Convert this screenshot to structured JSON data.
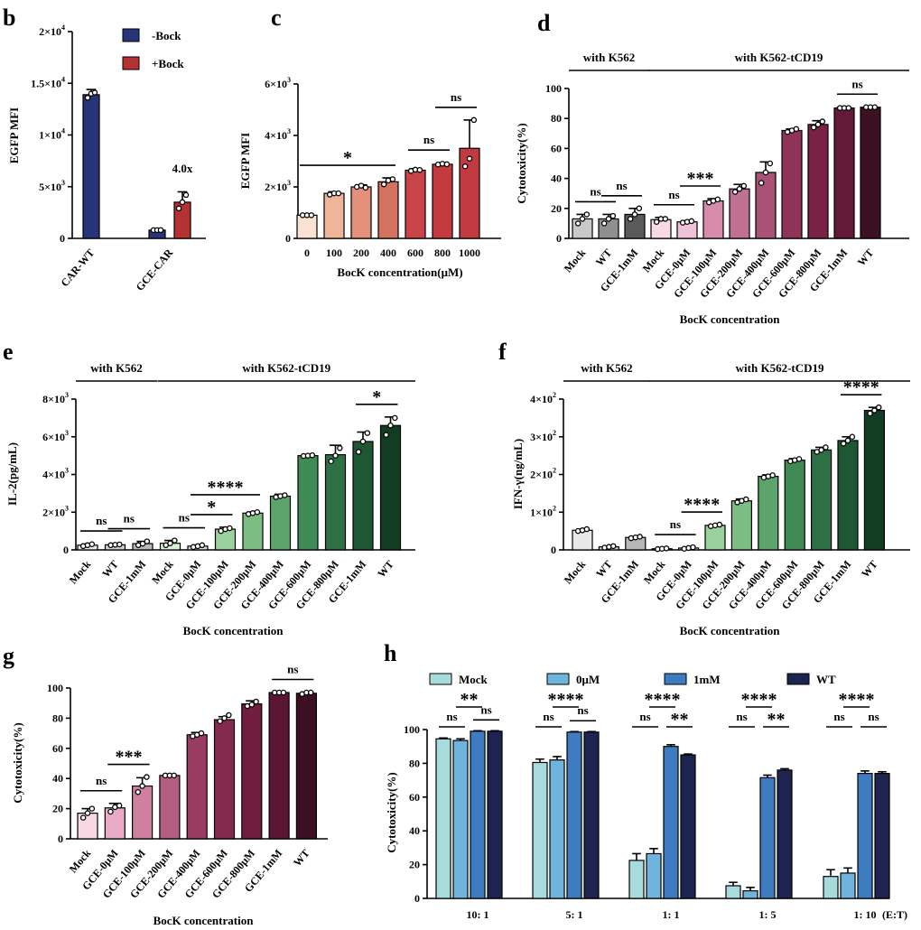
{
  "chart_data": [
    {
      "id": "b",
      "type": "bar",
      "panel_label": "b",
      "ylabel": "EGFP MFI",
      "ylim": [
        0,
        20000
      ],
      "yticks": [
        {
          "v": 0,
          "m": "0",
          "e": ""
        },
        {
          "v": 5000,
          "m": "5×10",
          "e": "3"
        },
        {
          "v": 10000,
          "m": "1×10",
          "e": "4"
        },
        {
          "v": 15000,
          "m": "1.5×10",
          "e": "4"
        },
        {
          "v": 20000,
          "m": "2×10",
          "e": "4"
        }
      ],
      "categories": [
        "CAR-WT",
        "GCE-CAR"
      ],
      "legend": [
        {
          "name": "-Bock",
          "color": "#28347a"
        },
        {
          "name": "+Bock",
          "color": "#b43232"
        }
      ],
      "bars": [
        {
          "cat": 0,
          "series": 0,
          "value": 13900,
          "err": 500,
          "points": [
            13600,
            14000,
            14100
          ],
          "color": "#28347a"
        },
        {
          "cat": 1,
          "series": 0,
          "value": 800,
          "err": 0,
          "points": [
            800,
            800,
            800
          ],
          "color": "#28347a"
        },
        {
          "cat": 1,
          "series": 1,
          "value": 3500,
          "err": 1000,
          "points": [
            2900,
            3500,
            4200
          ],
          "color": "#b43232"
        }
      ],
      "annotations": [
        {
          "text": "4.0x"
        }
      ]
    },
    {
      "id": "c",
      "type": "bar",
      "panel_label": "c",
      "ylabel": "EGFP MFI",
      "xlabel": "BocK concentration(μM)",
      "ylim": [
        0,
        6000
      ],
      "yticks": [
        {
          "v": 0,
          "m": "0",
          "e": ""
        },
        {
          "v": 2000,
          "m": "2×10",
          "e": "3"
        },
        {
          "v": 4000,
          "m": "4×10",
          "e": "3"
        },
        {
          "v": 6000,
          "m": "6×10",
          "e": "3"
        }
      ],
      "categories": [
        "0",
        "100",
        "200",
        "400",
        "600",
        "800",
        "1000"
      ],
      "values": [
        900,
        1750,
        2000,
        2200,
        2650,
        2880,
        3500
      ],
      "errors": [
        40,
        60,
        80,
        150,
        60,
        60,
        1100
      ],
      "points": [
        [
          900,
          900,
          900
        ],
        [
          1700,
          1750,
          1750
        ],
        [
          2000,
          2050,
          1970
        ],
        [
          2100,
          2250,
          2300
        ],
        [
          2620,
          2670,
          2660
        ],
        [
          2870,
          2900,
          2880
        ],
        [
          2800,
          3100,
          4600
        ]
      ],
      "colors": [
        "#fbe1d3",
        "#f0b599",
        "#e3917a",
        "#d47260",
        "#c84448",
        "#c43a3f",
        "#c23a40"
      ],
      "comparisons": [
        {
          "from": 0,
          "to": 3,
          "label": "*"
        },
        {
          "from": 4,
          "to": 5,
          "label": "ns"
        },
        {
          "from": 5,
          "to": 6,
          "label": "ns"
        }
      ]
    },
    {
      "id": "d",
      "type": "bar",
      "panel_label": "d",
      "ylabel": "Cytotoxicity(%)",
      "xlabel": "BocK concentration",
      "ylim": [
        0,
        100
      ],
      "yticks": [
        {
          "v": 0,
          "m": "0",
          "e": ""
        },
        {
          "v": 20,
          "m": "20",
          "e": ""
        },
        {
          "v": 40,
          "m": "40",
          "e": ""
        },
        {
          "v": 60,
          "m": "60",
          "e": ""
        },
        {
          "v": 80,
          "m": "80",
          "e": ""
        },
        {
          "v": 100,
          "m": "100",
          "e": ""
        }
      ],
      "groups": [
        {
          "label": "with K562",
          "from": 0,
          "to": 2
        },
        {
          "label": "with K562-tCD19",
          "from": 3,
          "to": 10
        }
      ],
      "categories": [
        "Mock",
        "WT",
        "GCE-1mM",
        "Mock",
        "GCE-0μM",
        "GCE-100μM",
        "GCE-200μM",
        "GCE-400μM",
        "GCE-600μM",
        "GCE-800μM",
        "GCE-1mM",
        "WT"
      ],
      "values": [
        13,
        13,
        16,
        12.5,
        11,
        25,
        33,
        44,
        72,
        76,
        87,
        87.5
      ],
      "errors": [
        3,
        3,
        4,
        1.5,
        0.8,
        1.5,
        3,
        7,
        1,
        2.5,
        0.5,
        0.3
      ],
      "points": [
        [
          10,
          13,
          16
        ],
        [
          10,
          13,
          15
        ],
        [
          13,
          16,
          20
        ],
        [
          11,
          13,
          13
        ],
        [
          10.5,
          11,
          11.5
        ],
        [
          24,
          25,
          26
        ],
        [
          31,
          33,
          35
        ],
        [
          37,
          44,
          50
        ],
        [
          71,
          72,
          73
        ],
        [
          74,
          76,
          78
        ],
        [
          87,
          87,
          87
        ],
        [
          87.5,
          87.5,
          87.5
        ]
      ],
      "colors": [
        "#c9c9c9",
        "#8f8f8f",
        "#5a5a5a",
        "#f7dae6",
        "#efc2d6",
        "#d78cac",
        "#c07093",
        "#a85275",
        "#8f3458",
        "#7a2246",
        "#631a3a",
        "#3b1022"
      ],
      "comparisons": [
        {
          "from": 0,
          "to": 1,
          "label": "ns"
        },
        {
          "from": 1,
          "to": 2,
          "label": "ns"
        },
        {
          "from": 3,
          "to": 4,
          "label": "ns"
        },
        {
          "from": 4,
          "to": 5,
          "label": "***"
        },
        {
          "from": 10,
          "to": 11,
          "label": "ns"
        }
      ]
    },
    {
      "id": "e",
      "type": "bar",
      "panel_label": "e",
      "ylabel": "IL-2(pg/mL)",
      "xlabel": "BocK concentration",
      "ylim": [
        0,
        8000
      ],
      "yticks": [
        {
          "v": 0,
          "m": "0",
          "e": ""
        },
        {
          "v": 2000,
          "m": "2×10",
          "e": "3"
        },
        {
          "v": 4000,
          "m": "4×10",
          "e": "3"
        },
        {
          "v": 6000,
          "m": "6×10",
          "e": "3"
        },
        {
          "v": 8000,
          "m": "8×10",
          "e": "3"
        }
      ],
      "groups": [
        {
          "label": "with K562",
          "from": 0,
          "to": 2
        },
        {
          "label": "with K562-tCD19",
          "from": 3,
          "to": 11
        }
      ],
      "categories": [
        "Mock",
        "WT",
        "GCE-1mM",
        "Mock",
        "GCE-0μM",
        "GCE-100μM",
        "GCE-200μM",
        "GCE-400μM",
        "GCE-600μM",
        "GCE-800μM",
        "GCE-1mM",
        "WT"
      ],
      "values": [
        250,
        270,
        330,
        350,
        200,
        1100,
        1950,
        2850,
        5000,
        5050,
        5750,
        6600
      ],
      "errors": [
        60,
        60,
        120,
        150,
        60,
        100,
        60,
        100,
        60,
        500,
        500,
        450
      ],
      "points": [
        [
          200,
          250,
          300
        ],
        [
          250,
          270,
          290
        ],
        [
          250,
          330,
          450
        ],
        [
          250,
          350,
          500
        ],
        [
          150,
          200,
          250
        ],
        [
          1000,
          1100,
          1150
        ],
        [
          1900,
          1950,
          2000
        ],
        [
          2800,
          2850,
          2900
        ],
        [
          4980,
          5000,
          5020
        ],
        [
          4700,
          5000,
          5400
        ],
        [
          5200,
          5750,
          6200
        ],
        [
          6100,
          6600,
          7000
        ]
      ],
      "colors": [
        "#e8e8e8",
        "#cfcfcf",
        "#b8b8b8",
        "#d8eed8",
        "#c2e3c2",
        "#9cd09c",
        "#7cbd84",
        "#5ca46c",
        "#3f8a55",
        "#2c7044",
        "#1d5832",
        "#123d22"
      ],
      "comparisons": [
        {
          "from": 0,
          "to": 1,
          "label": "ns"
        },
        {
          "from": 1,
          "to": 2,
          "label": "ns"
        },
        {
          "from": 3,
          "to": 4,
          "label": "ns"
        },
        {
          "from": 4,
          "to": 5,
          "label": "*"
        },
        {
          "from": 4,
          "to": 6,
          "label": "****"
        },
        {
          "from": 10,
          "to": 11,
          "label": "*"
        }
      ]
    },
    {
      "id": "f",
      "type": "bar",
      "panel_label": "f",
      "ylabel": "IFN-γ(ng/mL)",
      "xlabel": "BocK concentration",
      "ylim": [
        0,
        400
      ],
      "yticks": [
        {
          "v": 0,
          "m": "0",
          "e": ""
        },
        {
          "v": 100,
          "m": "1×10",
          "e": "2"
        },
        {
          "v": 200,
          "m": "2×10",
          "e": "2"
        },
        {
          "v": 300,
          "m": "3×10",
          "e": "2"
        },
        {
          "v": 400,
          "m": "4×10",
          "e": "2"
        }
      ],
      "groups": [
        {
          "label": "with K562",
          "from": 0,
          "to": 2
        },
        {
          "label": "with K562-tCD19",
          "from": 3,
          "to": 11
        }
      ],
      "categories": [
        "Mock",
        "WT",
        "GCE-1mM",
        "Mock",
        "GCE-0μM",
        "GCE-100μM",
        "GCE-200μM",
        "GCE-400μM",
        "GCE-600μM",
        "GCE-800μM",
        "GCE-1mM",
        "WT"
      ],
      "values": [
        52,
        8,
        33,
        3,
        5,
        65,
        130,
        195,
        238,
        265,
        290,
        370
      ],
      "errors": [
        3,
        2,
        2,
        1,
        2,
        2,
        5,
        4,
        4,
        7,
        10,
        8
      ],
      "points": [
        [
          50,
          52,
          55
        ],
        [
          6,
          8,
          10
        ],
        [
          31,
          33,
          35
        ],
        [
          2,
          3,
          4
        ],
        [
          3,
          5,
          7
        ],
        [
          63,
          65,
          67
        ],
        [
          126,
          130,
          134
        ],
        [
          192,
          195,
          198
        ],
        [
          235,
          238,
          241
        ],
        [
          260,
          265,
          272
        ],
        [
          282,
          290,
          300
        ],
        [
          362,
          370,
          378
        ]
      ],
      "colors": [
        "#e8e8e8",
        "#cfcfcf",
        "#b8b8b8",
        "#d8eed8",
        "#c2e3c2",
        "#9cd09c",
        "#7cbd84",
        "#5ca46c",
        "#3f8a55",
        "#2c7044",
        "#1d5832",
        "#123d22"
      ],
      "comparisons": [
        {
          "from": 3,
          "to": 4,
          "label": "ns"
        },
        {
          "from": 4,
          "to": 5,
          "label": "****"
        },
        {
          "from": 10,
          "to": 11,
          "label": "****"
        }
      ]
    },
    {
      "id": "g",
      "type": "bar",
      "panel_label": "g",
      "ylabel": "Cytotoxicity(%)",
      "xlabel": "BocK concentration",
      "ylim": [
        0,
        100
      ],
      "yticks": [
        {
          "v": 0,
          "m": "0",
          "e": ""
        },
        {
          "v": 20,
          "m": "20",
          "e": ""
        },
        {
          "v": 40,
          "m": "40",
          "e": ""
        },
        {
          "v": 60,
          "m": "60",
          "e": ""
        },
        {
          "v": 80,
          "m": "80",
          "e": ""
        },
        {
          "v": 100,
          "m": "100",
          "e": ""
        }
      ],
      "categories": [
        "Mock",
        "GCE-0μM",
        "GCE-100μM",
        "GCE-200μM",
        "GCE-400μM",
        "GCE-600μM",
        "GCE-800μM",
        "GCE-1mM",
        "WT"
      ],
      "values": [
        17,
        20.5,
        35,
        42,
        69,
        79,
        89.5,
        97,
        96.5
      ],
      "errors": [
        3,
        3,
        5.5,
        0.5,
        1.5,
        2,
        2,
        0.3,
        0.5
      ],
      "points": [
        [
          14,
          17,
          20
        ],
        [
          18,
          21,
          22
        ],
        [
          31,
          35,
          41
        ],
        [
          42,
          42,
          42
        ],
        [
          68,
          69,
          70
        ],
        [
          78,
          80,
          82
        ],
        [
          88,
          89,
          91
        ],
        [
          97,
          97,
          97
        ],
        [
          96,
          97,
          97
        ]
      ],
      "colors": [
        "#f7d8e4",
        "#e8aac4",
        "#cf7fa0",
        "#b35d80",
        "#9a3c62",
        "#852a4f",
        "#701d41",
        "#5a1634",
        "#3d0f22"
      ],
      "comparisons": [
        {
          "from": 0,
          "to": 1,
          "label": "ns"
        },
        {
          "from": 1,
          "to": 2,
          "label": "***"
        },
        {
          "from": 7,
          "to": 8,
          "label": "ns"
        }
      ]
    },
    {
      "id": "h",
      "type": "bar",
      "panel_label": "h",
      "ylabel": "Cytotoxicity(%)",
      "xlabel_right": "(E:T)",
      "ylim": [
        0,
        100
      ],
      "yticks": [
        {
          "v": 0,
          "m": "0",
          "e": ""
        },
        {
          "v": 20,
          "m": "20",
          "e": ""
        },
        {
          "v": 40,
          "m": "40",
          "e": ""
        },
        {
          "v": 60,
          "m": "60",
          "e": ""
        },
        {
          "v": 80,
          "m": "80",
          "e": ""
        },
        {
          "v": 100,
          "m": "100",
          "e": ""
        }
      ],
      "categories": [
        "10: 1",
        "5: 1",
        "1: 1",
        "1: 5",
        "1: 10"
      ],
      "series": [
        {
          "name": "Mock",
          "color": "#a8dcdc",
          "values": [
            94.5,
            80.5,
            22.5,
            7.5,
            13
          ],
          "errors": [
            0.5,
            2,
            4,
            2,
            4
          ]
        },
        {
          "name": "0μM",
          "color": "#6fb4dc",
          "values": [
            93.5,
            82,
            26.5,
            4.5,
            15
          ],
          "errors": [
            1,
            2,
            3,
            2,
            3
          ]
        },
        {
          "name": "1mM",
          "color": "#3d7cc0",
          "values": [
            99,
            98.5,
            90,
            71.5,
            74
          ],
          "errors": [
            0.3,
            0.3,
            1,
            1.5,
            1.5
          ]
        },
        {
          "name": "WT",
          "color": "#1e2450",
          "values": [
            99,
            98.5,
            85,
            76,
            74
          ],
          "errors": [
            0.3,
            0.3,
            0.5,
            0.8,
            1
          ]
        }
      ],
      "comparisons": [
        {
          "cat": 0,
          "from": 0,
          "to": 1,
          "label": "ns",
          "level": 0
        },
        {
          "cat": 0,
          "from": 1,
          "to": 2,
          "label": "**",
          "level": 1
        },
        {
          "cat": 0,
          "from": 2,
          "to": 3,
          "label": "ns",
          "level": 0
        },
        {
          "cat": 1,
          "from": 0,
          "to": 1,
          "label": "ns",
          "level": 0
        },
        {
          "cat": 1,
          "from": 1,
          "to": 2,
          "label": "****",
          "level": 1
        },
        {
          "cat": 1,
          "from": 2,
          "to": 3,
          "label": "ns",
          "level": 0
        },
        {
          "cat": 2,
          "from": 0,
          "to": 1,
          "label": "ns",
          "level": 0
        },
        {
          "cat": 2,
          "from": 1,
          "to": 2,
          "label": "****",
          "level": 1
        },
        {
          "cat": 2,
          "from": 2,
          "to": 3,
          "label": "**",
          "level": 0
        },
        {
          "cat": 3,
          "from": 0,
          "to": 1,
          "label": "ns",
          "level": 0
        },
        {
          "cat": 3,
          "from": 1,
          "to": 2,
          "label": "****",
          "level": 1
        },
        {
          "cat": 3,
          "from": 2,
          "to": 3,
          "label": "**",
          "level": 0
        },
        {
          "cat": 4,
          "from": 0,
          "to": 1,
          "label": "ns",
          "level": 0
        },
        {
          "cat": 4,
          "from": 1,
          "to": 2,
          "label": "****",
          "level": 1
        },
        {
          "cat": 4,
          "from": 2,
          "to": 3,
          "label": "ns",
          "level": 0
        }
      ]
    }
  ]
}
